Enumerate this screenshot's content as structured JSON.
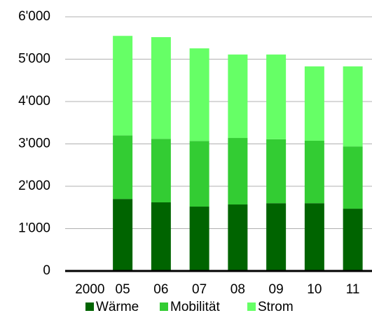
{
  "chart_data": {
    "type": "stacked_bar",
    "categories": [
      "2000",
      "05",
      "06",
      "07",
      "08",
      "09",
      "10",
      "11"
    ],
    "series": [
      {
        "name": "Wärme",
        "color": "#006400",
        "values": [
          null,
          1700,
          1620,
          1520,
          1570,
          1600,
          1600,
          1470
        ]
      },
      {
        "name": "Mobilität",
        "color": "#33cc33",
        "values": [
          null,
          1500,
          1500,
          1550,
          1570,
          1510,
          1475,
          1470
        ]
      },
      {
        "name": "Strom",
        "color": "#66ff66",
        "values": [
          null,
          2350,
          2400,
          2185,
          1970,
          2000,
          1755,
          1890
        ]
      }
    ],
    "ylim": [
      0,
      6000
    ],
    "yticks": [
      0,
      {
        "value": 1000,
        "label": "1'000"
      },
      {
        "value": 2000,
        "label": "2'000"
      },
      {
        "value": 3000,
        "label": "3'000"
      },
      {
        "value": 4000,
        "label": "4'000"
      },
      {
        "value": 5000,
        "label": "5'000"
      },
      {
        "value": 6000,
        "label": "6'000"
      }
    ],
    "grid": true,
    "legend": "bottom"
  }
}
